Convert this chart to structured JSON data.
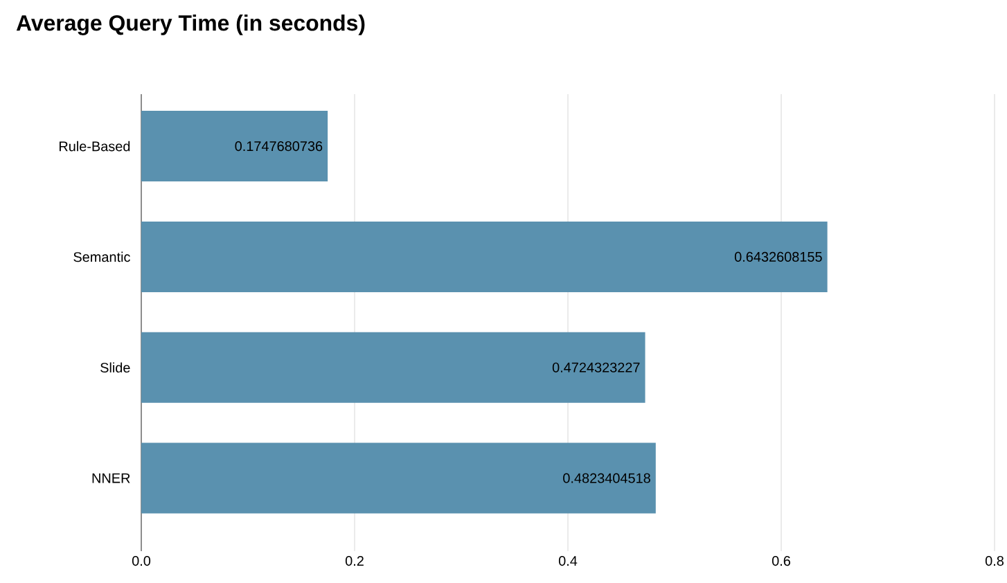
{
  "chart_data": {
    "type": "bar",
    "orientation": "horizontal",
    "title": "Average Query Time (in seconds)",
    "categories": [
      "Rule-Based",
      "Semantic",
      "Slide",
      "NNER"
    ],
    "values": [
      0.1747680736,
      0.6432608155,
      0.4724323227,
      0.4823404518
    ],
    "value_labels": [
      "0.1747680736",
      "0.6432608155",
      "0.4724323227",
      "0.4823404518"
    ],
    "color": "#5a91af",
    "xlim": [
      0,
      0.8
    ],
    "xticks": [
      {
        "value": 0,
        "label": "0.0"
      },
      {
        "value": 0.2,
        "label": "0.2"
      },
      {
        "value": 0.4,
        "label": "0.4"
      },
      {
        "value": 0.6,
        "label": "0.6"
      },
      {
        "value": 0.8,
        "label": "0.8"
      }
    ],
    "grid": "x"
  }
}
